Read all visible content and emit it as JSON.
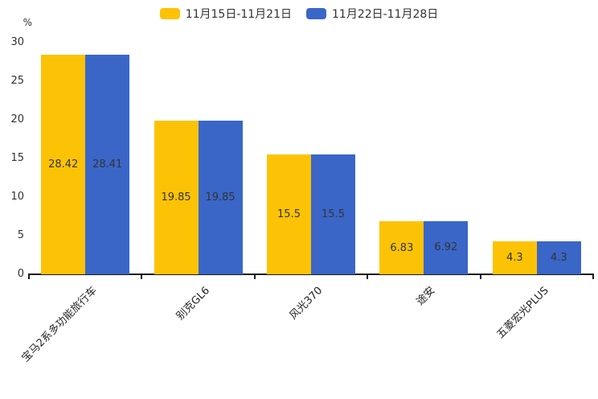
{
  "chart_data": {
    "type": "bar",
    "title": "",
    "categories": [
      "宝马2系多功能旅行车",
      "别克GL6",
      "风光370",
      "途安",
      "五菱宏光PLUS"
    ],
    "series": [
      {
        "name": "11月15日-11月21日",
        "color": "#FCC306",
        "values": [
          28.42,
          19.85,
          15.5,
          6.83,
          4.3
        ]
      },
      {
        "name": "11月22日-11月28日",
        "color": "#3A66C8",
        "values": [
          28.41,
          19.85,
          15.5,
          6.92,
          4.3
        ]
      }
    ],
    "xlabel": "",
    "ylabel": "%",
    "ylim": [
      0,
      30
    ],
    "yticks": [
      0,
      5,
      10,
      15,
      20,
      25,
      30
    ],
    "grid": false,
    "legend_position": "top",
    "bar_labels": "inside-center",
    "xtick_label_rotation_deg": 45,
    "axis_color": "#1a1a1a",
    "label_color": "#333333"
  }
}
